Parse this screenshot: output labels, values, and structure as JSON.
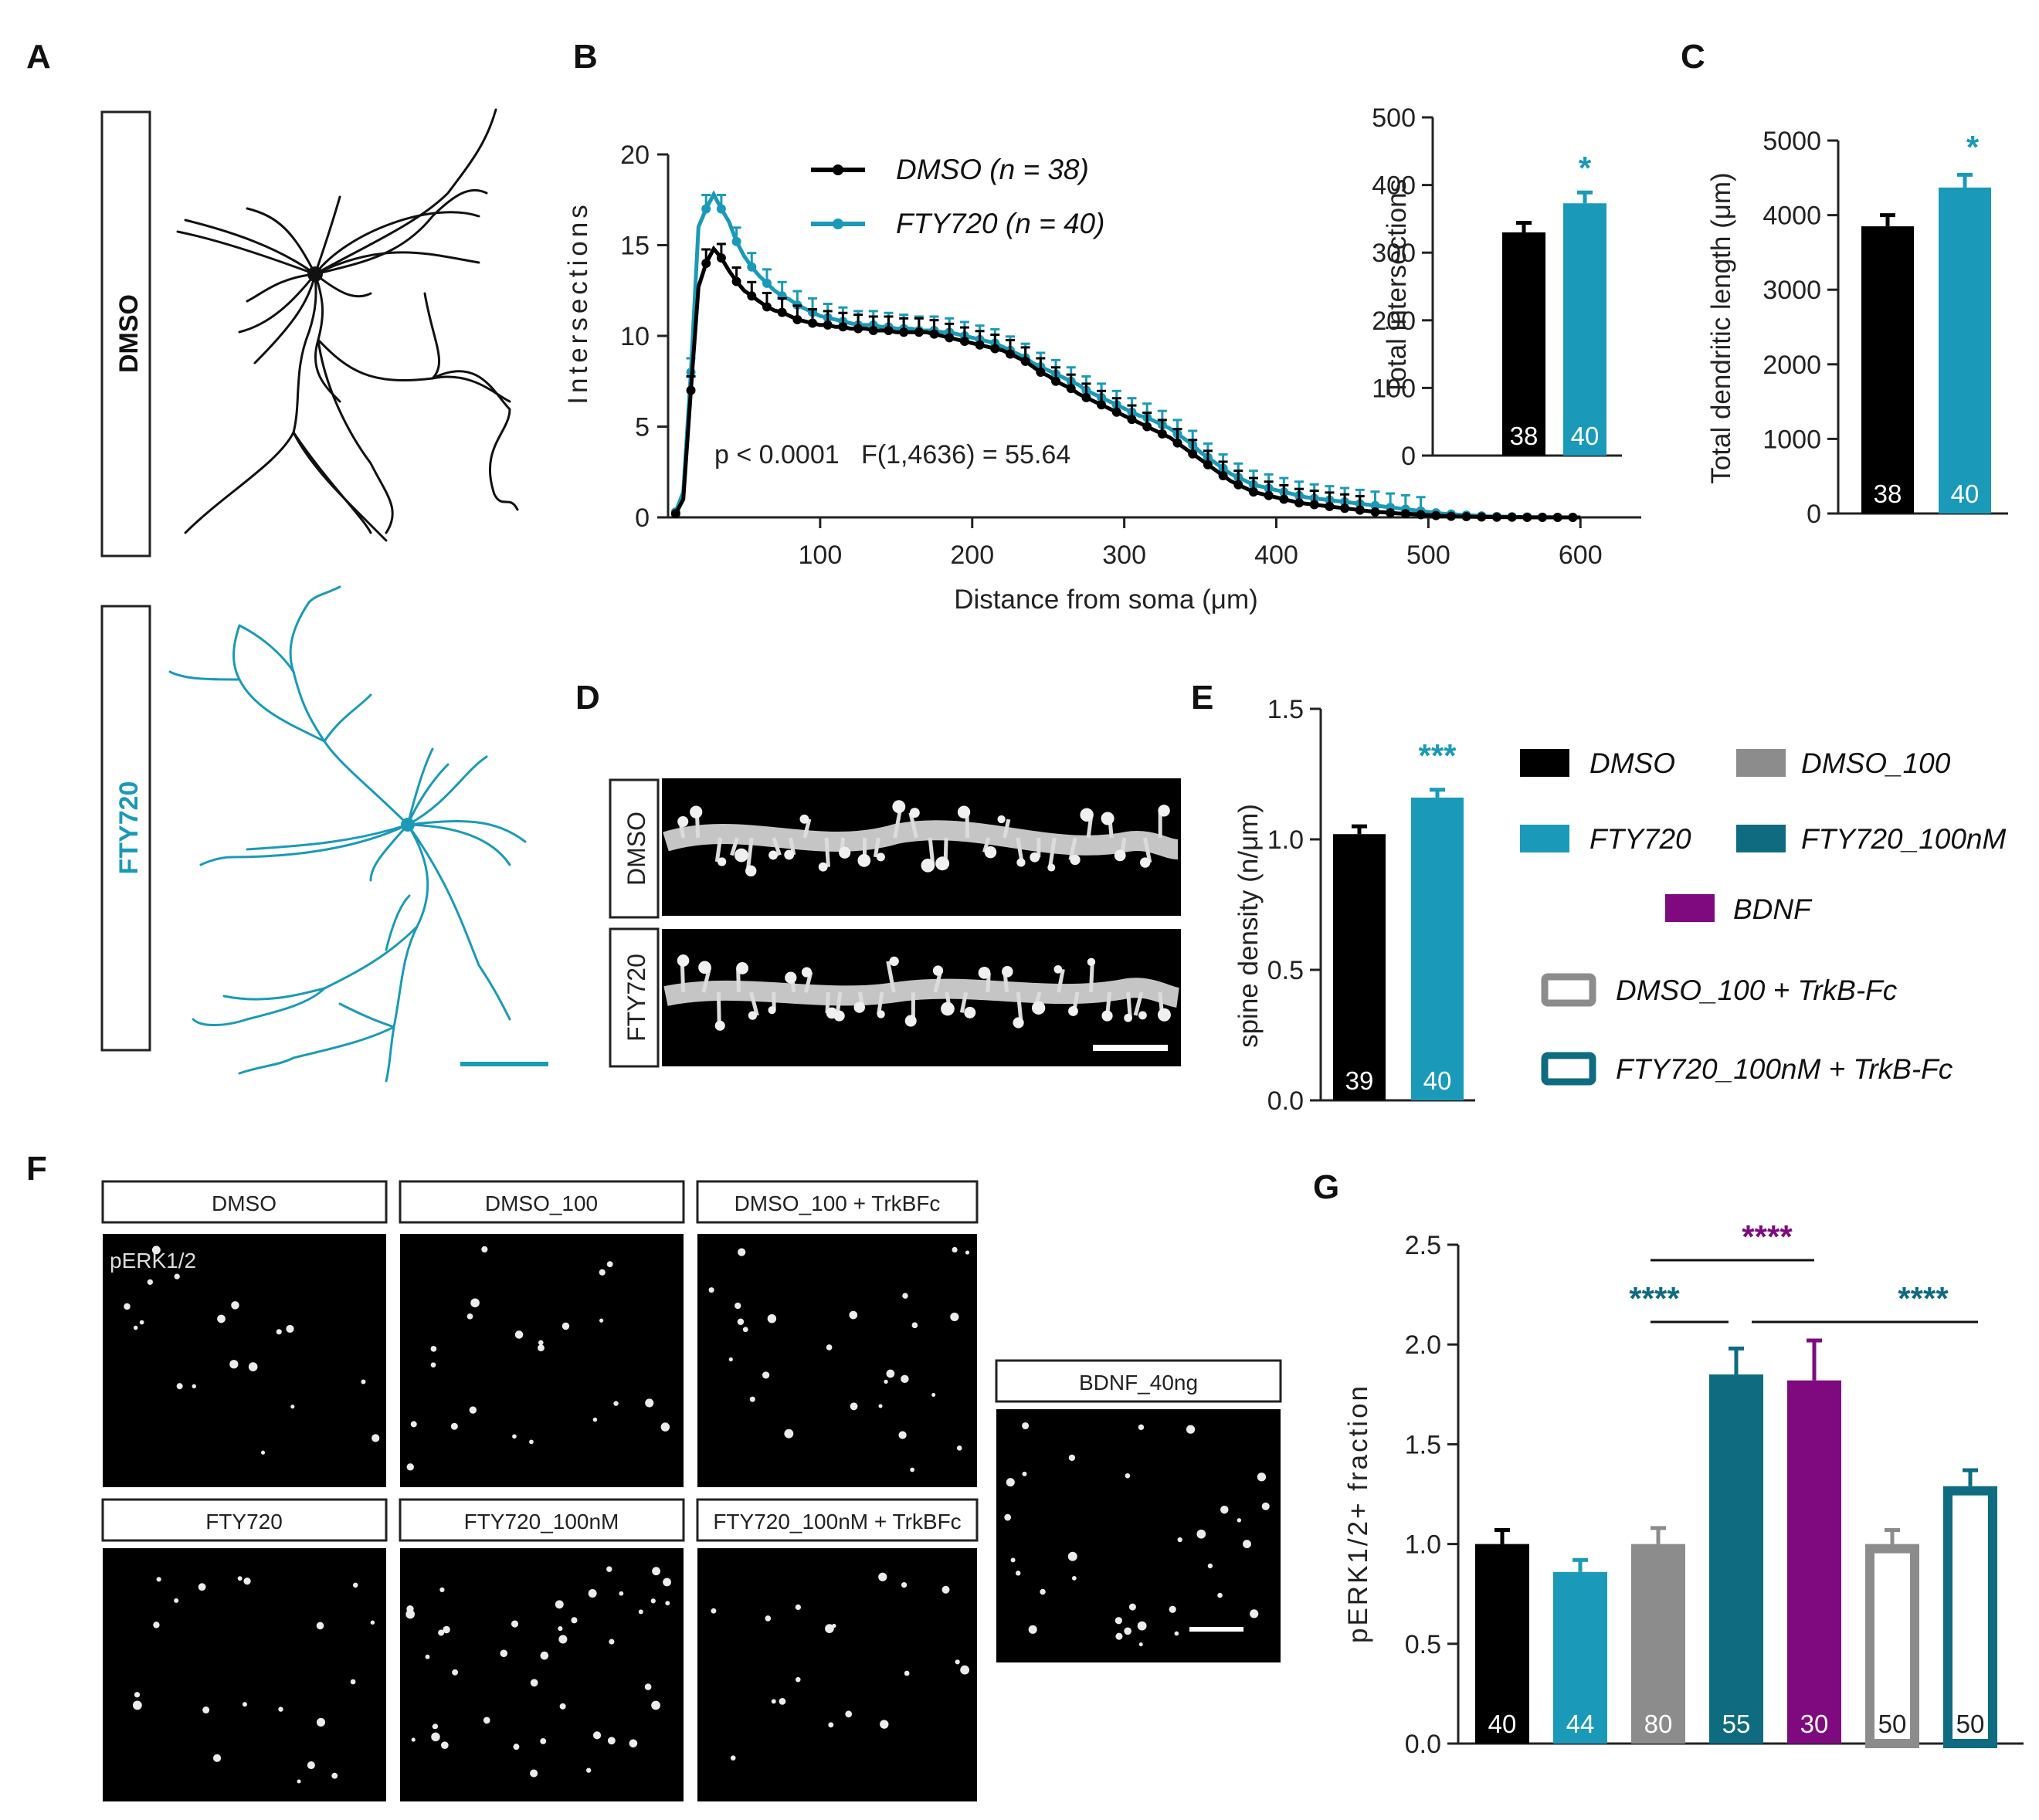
{
  "colors": {
    "dmso": "#000000",
    "fty720": "#1a9ab8",
    "dmso_100": "#8c8c8c",
    "fty720_100nM": "#0f6b80",
    "bdnf": "#7f0a80",
    "trkb_dmso_outline": "#8c8c8c",
    "trkb_fty_outline": "#0f6b80"
  },
  "panels": {
    "a": {
      "label": "A",
      "row1": "DMSO",
      "row2": "FTY720"
    },
    "b": {
      "label": "B"
    },
    "c": {
      "label": "C"
    },
    "d": {
      "label": "D",
      "row1": "DMSO",
      "row2": "FTY720"
    },
    "e": {
      "label": "E"
    },
    "f": {
      "label": "F",
      "marker": "pERK1/2",
      "conditions": [
        "DMSO",
        "DMSO_100",
        "DMSO_100 + TrkBFc",
        "FTY720",
        "FTY720_100nM",
        "FTY720_100nM + TrkBFc",
        "BDNF_40ng"
      ]
    },
    "g": {
      "label": "G"
    }
  },
  "legend_b": {
    "dmso": "DMSO (n = 38)",
    "fty": "FTY720 (n = 40)"
  },
  "legend_e": {
    "dmso": "DMSO",
    "dmso_100": "DMSO_100",
    "fty720": "FTY720",
    "fty720_100nM": "FTY720_100nM",
    "bdnf": "BDNF",
    "dmso_100_trkb": "DMSO_100 + TrkB-Fc",
    "fty720_100nM_trkb": "FTY720_100nM + TrkB-Fc"
  },
  "chart_data": [
    {
      "id": "B",
      "type": "line",
      "xlabel": "Distance from soma (μm)",
      "ylabel": "Intersections",
      "xlim": [
        0,
        640
      ],
      "ylim": [
        0,
        20
      ],
      "xticks": [
        100,
        200,
        300,
        400,
        500,
        600
      ],
      "yticks": [
        0,
        5,
        10,
        15,
        20
      ],
      "annotation": "p < 0.0001   F(1,4636) = 55.64",
      "series": [
        {
          "name": "DMSO (n = 38)",
          "x": [
            5,
            10,
            15,
            20,
            25,
            30,
            35,
            40,
            45,
            50,
            55,
            60,
            65,
            70,
            75,
            80,
            85,
            90,
            95,
            100,
            105,
            110,
            115,
            120,
            125,
            130,
            135,
            140,
            145,
            150,
            155,
            160,
            165,
            170,
            175,
            180,
            185,
            190,
            195,
            200,
            205,
            210,
            215,
            220,
            225,
            230,
            235,
            240,
            245,
            250,
            255,
            260,
            265,
            270,
            275,
            280,
            285,
            290,
            295,
            300,
            305,
            310,
            315,
            320,
            325,
            330,
            335,
            340,
            345,
            350,
            355,
            360,
            365,
            370,
            375,
            380,
            385,
            390,
            395,
            400,
            405,
            410,
            415,
            420,
            425,
            430,
            435,
            440,
            445,
            450,
            455,
            460,
            465,
            470,
            475,
            480,
            485,
            490,
            495,
            500,
            505,
            510,
            515,
            520,
            525,
            530,
            535,
            540,
            545,
            550,
            555,
            560,
            565,
            570,
            575,
            580,
            585,
            590,
            595,
            600
          ],
          "y": [
            0.2,
            1.0,
            7.0,
            12.7,
            14.0,
            14.8,
            14.3,
            13.6,
            13.0,
            12.5,
            12.2,
            11.9,
            11.6,
            11.4,
            11.3,
            11.1,
            10.9,
            10.8,
            10.7,
            10.6,
            10.6,
            10.5,
            10.5,
            10.4,
            10.4,
            10.4,
            10.3,
            10.3,
            10.3,
            10.2,
            10.2,
            10.2,
            10.2,
            10.2,
            10.1,
            10.0,
            9.9,
            9.8,
            9.7,
            9.6,
            9.5,
            9.4,
            9.3,
            9.2,
            9.0,
            8.8,
            8.6,
            8.3,
            8.0,
            7.8,
            7.5,
            7.3,
            7.1,
            6.8,
            6.6,
            6.4,
            6.2,
            6.0,
            5.8,
            5.6,
            5.4,
            5.2,
            5.0,
            4.8,
            4.6,
            4.4,
            4.1,
            3.8,
            3.5,
            3.2,
            2.9,
            2.6,
            2.3,
            2.0,
            1.8,
            1.6,
            1.4,
            1.3,
            1.2,
            1.1,
            1.0,
            0.9,
            0.8,
            0.75,
            0.7,
            0.65,
            0.6,
            0.55,
            0.5,
            0.45,
            0.4,
            0.35,
            0.3,
            0.28,
            0.25,
            0.22,
            0.2,
            0.18,
            0.15,
            0.12,
            0.1,
            0.08,
            0.06,
            0.05,
            0.04,
            0.03,
            0.02,
            0.02,
            0.01,
            0.01,
            0.01,
            0.01,
            0.0,
            0.0,
            0.0,
            0.0,
            0.0,
            0.0,
            0.0,
            0.0
          ]
        },
        {
          "name": "FTY720 (n = 40)",
          "x": [
            5,
            10,
            15,
            20,
            25,
            30,
            35,
            40,
            45,
            50,
            55,
            60,
            65,
            70,
            75,
            80,
            85,
            90,
            95,
            100,
            105,
            110,
            115,
            120,
            125,
            130,
            135,
            140,
            145,
            150,
            155,
            160,
            165,
            170,
            175,
            180,
            185,
            190,
            195,
            200,
            205,
            210,
            215,
            220,
            225,
            230,
            235,
            240,
            245,
            250,
            255,
            260,
            265,
            270,
            275,
            280,
            285,
            290,
            295,
            300,
            305,
            310,
            315,
            320,
            325,
            330,
            335,
            340,
            345,
            350,
            355,
            360,
            365,
            370,
            375,
            380,
            385,
            390,
            395,
            400,
            405,
            410,
            415,
            420,
            425,
            430,
            435,
            440,
            445,
            450,
            455,
            460,
            465,
            470,
            475,
            480,
            485,
            490,
            495,
            500,
            505,
            510,
            515,
            520,
            525,
            530,
            535,
            540,
            545,
            550,
            555,
            560,
            565,
            570,
            575,
            580,
            585,
            590,
            595,
            600
          ],
          "y": [
            0.3,
            1.4,
            8.0,
            16.0,
            17.0,
            17.8,
            17.0,
            16.3,
            15.2,
            14.4,
            13.8,
            13.3,
            12.9,
            12.5,
            12.2,
            12.0,
            11.7,
            11.5,
            11.3,
            11.1,
            11.0,
            10.9,
            10.8,
            10.7,
            10.6,
            10.6,
            10.6,
            10.5,
            10.5,
            10.4,
            10.4,
            10.4,
            10.3,
            10.3,
            10.3,
            10.2,
            10.2,
            10.1,
            10.0,
            9.9,
            9.8,
            9.7,
            9.6,
            9.4,
            9.2,
            9.0,
            8.8,
            8.5,
            8.3,
            8.1,
            7.9,
            7.7,
            7.5,
            7.3,
            7.0,
            6.8,
            6.6,
            6.4,
            6.2,
            6.0,
            5.8,
            5.6,
            5.5,
            5.3,
            5.1,
            4.9,
            4.6,
            4.3,
            4.0,
            3.6,
            3.3,
            3.0,
            2.7,
            2.4,
            2.2,
            2.0,
            1.8,
            1.7,
            1.6,
            1.5,
            1.4,
            1.3,
            1.2,
            1.1,
            1.05,
            1.0,
            0.95,
            0.9,
            0.85,
            0.8,
            0.75,
            0.7,
            0.65,
            0.6,
            0.55,
            0.5,
            0.45,
            0.4,
            0.35,
            0.3,
            0.25,
            0.2,
            0.18,
            0.15,
            0.12,
            0.1,
            0.08,
            0.06,
            0.05,
            0.04,
            0.03,
            0.02,
            0.02,
            0.01,
            0.01,
            0.01,
            0.0,
            0.0,
            0.0,
            0.0
          ]
        }
      ]
    },
    {
      "id": "B-inset",
      "type": "bar",
      "ylabel": "Total  intersections",
      "ylim": [
        0,
        500
      ],
      "yticks": [
        0,
        100,
        200,
        300,
        400,
        500
      ],
      "categories": [
        "DMSO",
        "FTY720"
      ],
      "values": [
        330,
        373
      ],
      "errors": [
        14,
        16
      ],
      "n": [
        "38",
        "40"
      ],
      "significance": [
        {
          "text": "*",
          "over": 1
        }
      ]
    },
    {
      "id": "C",
      "type": "bar",
      "ylabel": "Total dendritic length (μm)",
      "ylim": [
        0,
        5000
      ],
      "yticks": [
        0,
        1000,
        2000,
        3000,
        4000,
        5000
      ],
      "categories": [
        "DMSO",
        "FTY720"
      ],
      "values": [
        3850,
        4370
      ],
      "errors": [
        150,
        170
      ],
      "n": [
        "38",
        "40"
      ],
      "significance": [
        {
          "text": "*",
          "over": 1
        }
      ]
    },
    {
      "id": "E",
      "type": "bar",
      "ylabel": "spine density (n/μm)",
      "ylim": [
        0,
        1.5
      ],
      "yticks": [
        "0.0",
        "0.5",
        "1.0",
        "1.5"
      ],
      "categories": [
        "DMSO",
        "FTY720"
      ],
      "values": [
        1.02,
        1.16
      ],
      "errors": [
        0.03,
        0.03
      ],
      "n": [
        "39",
        "40"
      ],
      "significance": [
        {
          "text": "***",
          "over": 1
        }
      ]
    },
    {
      "id": "G",
      "type": "bar",
      "ylabel": "pERK1/2+ fraction",
      "ylim": [
        0,
        2.5
      ],
      "yticks": [
        "0.0",
        "0.5",
        "1.0",
        "1.5",
        "2.0",
        "2.5"
      ],
      "categories": [
        "DMSO",
        "FTY720",
        "DMSO_100",
        "FTY720_100nM",
        "BDNF",
        "DMSO_100 + TrkB-Fc",
        "FTY720_100nM + TrkB-Fc"
      ],
      "values": [
        1.0,
        0.86,
        1.0,
        1.85,
        1.82,
        1.0,
        1.29
      ],
      "errors": [
        0.07,
        0.06,
        0.08,
        0.13,
        0.2,
        0.07,
        0.08
      ],
      "n": [
        "40",
        "44",
        "80",
        "55",
        "30",
        "50",
        "50"
      ],
      "significance": [
        {
          "text": "****",
          "from": 2,
          "to": 3,
          "color": "fty720_100nM"
        },
        {
          "text": "****",
          "from": 2,
          "to": 4,
          "color": "bdnf"
        },
        {
          "text": "****",
          "from": 3,
          "to": 6,
          "color": "fty720_100nM"
        }
      ]
    }
  ]
}
